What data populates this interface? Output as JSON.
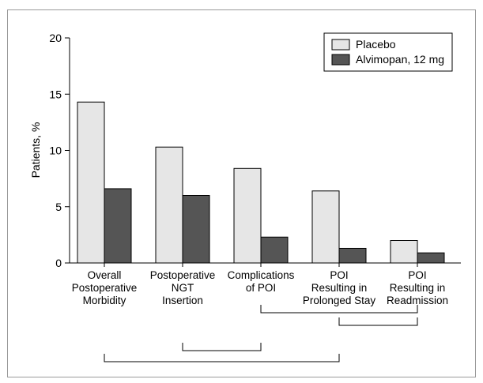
{
  "chart_data": {
    "type": "bar",
    "ylabel": "Patients, %",
    "ylim": [
      0,
      20
    ],
    "yticks": [
      0,
      5,
      10,
      15,
      20
    ],
    "grid": false,
    "legend_position": "top-right",
    "categories": [
      [
        "Overall",
        "Postoperative",
        "Morbidity"
      ],
      [
        "Postoperative",
        "NGT",
        "Insertion"
      ],
      [
        "Complications",
        "of POI"
      ],
      [
        "POI",
        "Resulting in",
        "Prolonged Stay"
      ],
      [
        "POI",
        "Resulting in",
        "Readmission"
      ]
    ],
    "series": [
      {
        "name": "Placebo",
        "values": [
          14.3,
          10.3,
          8.4,
          6.4,
          2.0
        ]
      },
      {
        "name": "Alvimopan, 12 mg",
        "values": [
          6.6,
          6.0,
          2.3,
          1.3,
          0.9
        ]
      }
    ],
    "brackets": [
      [
        "Complications of POI",
        "POI Resulting in Readmission"
      ],
      [
        "POI Resulting in Prolonged Stay",
        "POI Resulting in Readmission"
      ],
      [
        "Postoperative NGT Insertion",
        "Complications of POI"
      ],
      [
        "Overall Postoperative Morbidity",
        "POI Resulting in Prolonged Stay"
      ]
    ]
  },
  "colors": {
    "placebo": "#e6e6e6",
    "alvimopan": "#555555",
    "outline": "#000000",
    "frame": "#9a9a9a"
  }
}
